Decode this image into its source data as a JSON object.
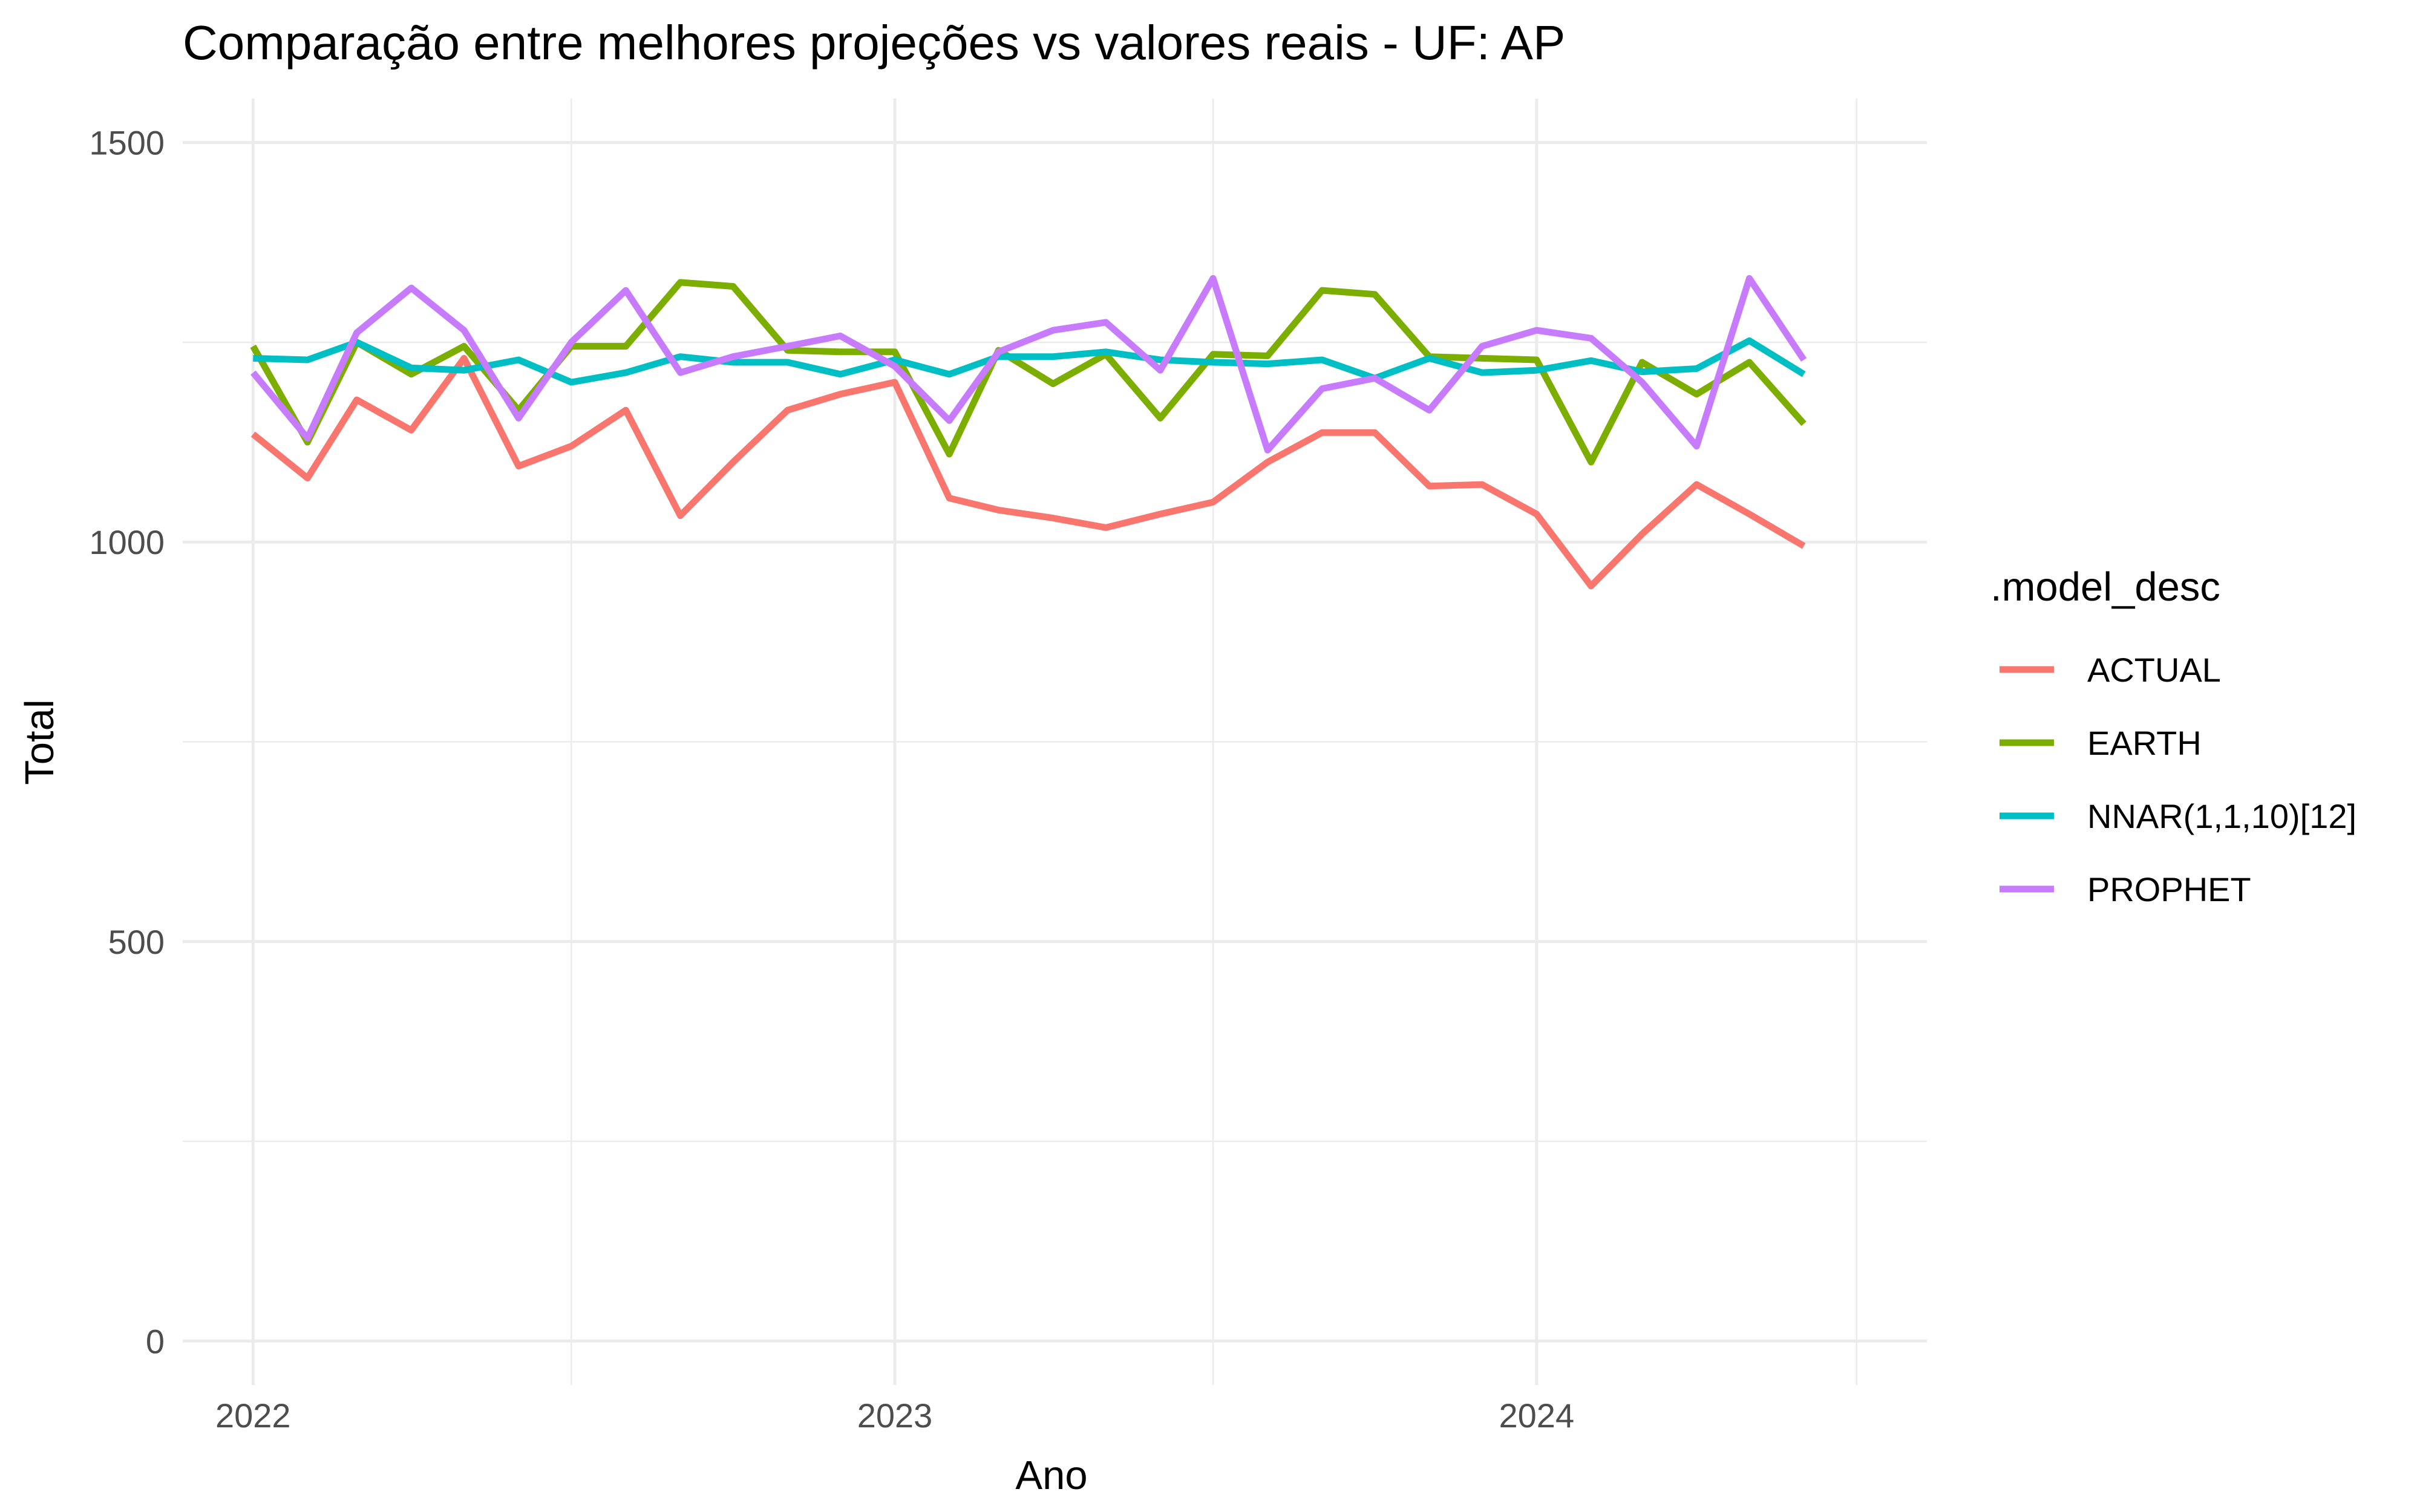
{
  "chart_data": {
    "type": "line",
    "title": "Comparação entre melhores projeções vs valores reais - UF: AP",
    "xlabel": "Ano",
    "ylabel": "Total",
    "legend_title": ".model_desc",
    "legend_position": "right",
    "grid": true,
    "x": [
      "2022-01",
      "2022-02",
      "2022-03",
      "2022-04",
      "2022-05",
      "2022-06",
      "2022-07",
      "2022-08",
      "2022-09",
      "2022-10",
      "2022-11",
      "2022-12",
      "2023-01",
      "2023-02",
      "2023-03",
      "2023-04",
      "2023-05",
      "2023-06",
      "2023-07",
      "2023-08",
      "2023-09",
      "2023-10",
      "2023-11",
      "2023-12",
      "2024-01",
      "2024-02",
      "2024-03",
      "2024-04",
      "2024-05",
      "2024-06"
    ],
    "xlim": [
      "2021-11-22",
      "2024-08-10"
    ],
    "ylim": [
      -55,
      1555
    ],
    "x_ticks": [
      {
        "label": "2022",
        "date": "2022-01-01"
      },
      {
        "label": "2023",
        "date": "2023-01-01"
      },
      {
        "label": "2024",
        "date": "2024-01-01"
      }
    ],
    "x_minor_ticks": [
      "2022-07-01",
      "2023-07-01",
      "2024-07-01"
    ],
    "y_ticks": [
      {
        "label": "0",
        "value": 0
      },
      {
        "label": "500",
        "value": 500
      },
      {
        "label": "1000",
        "value": 1000
      },
      {
        "label": "1500",
        "value": 1500
      }
    ],
    "y_minor_ticks": [
      250,
      750,
      1250
    ],
    "series": [
      {
        "name": "ACTUAL",
        "color": "#F8766D",
        "values": [
          1135,
          1080,
          1178,
          1140,
          1230,
          1095,
          1120,
          1165,
          1033,
          1100,
          1165,
          1185,
          1200,
          1055,
          1040,
          1030,
          1018,
          1035,
          1050,
          1100,
          1137,
          1137,
          1070,
          1072,
          1035,
          945,
          1010,
          1072,
          1035,
          995
        ]
      },
      {
        "name": "EARTH",
        "color": "#7CAE00",
        "values": [
          1245,
          1125,
          1250,
          1210,
          1245,
          1165,
          1245,
          1245,
          1325,
          1320,
          1240,
          1238,
          1238,
          1110,
          1240,
          1198,
          1235,
          1155,
          1235,
          1233,
          1315,
          1310,
          1232,
          1230,
          1228,
          1100,
          1225,
          1185,
          1225,
          1148
        ]
      },
      {
        "name": "NNAR(1,1,10)[12]",
        "color": "#00BFC4",
        "values": [
          1230,
          1228,
          1250,
          1218,
          1215,
          1228,
          1200,
          1212,
          1232,
          1225,
          1225,
          1210,
          1228,
          1210,
          1232,
          1232,
          1238,
          1228,
          1225,
          1223,
          1228,
          1205,
          1230,
          1212,
          1215,
          1227,
          1213,
          1217,
          1252,
          1210
        ]
      },
      {
        "name": "PROPHET",
        "color": "#C77CFF",
        "values": [
          1212,
          1130,
          1262,
          1318,
          1265,
          1155,
          1250,
          1315,
          1212,
          1232,
          1245,
          1258,
          1220,
          1152,
          1238,
          1265,
          1275,
          1215,
          1330,
          1115,
          1192,
          1205,
          1165,
          1245,
          1265,
          1255,
          1200,
          1120,
          1330,
          1228
        ]
      }
    ]
  }
}
